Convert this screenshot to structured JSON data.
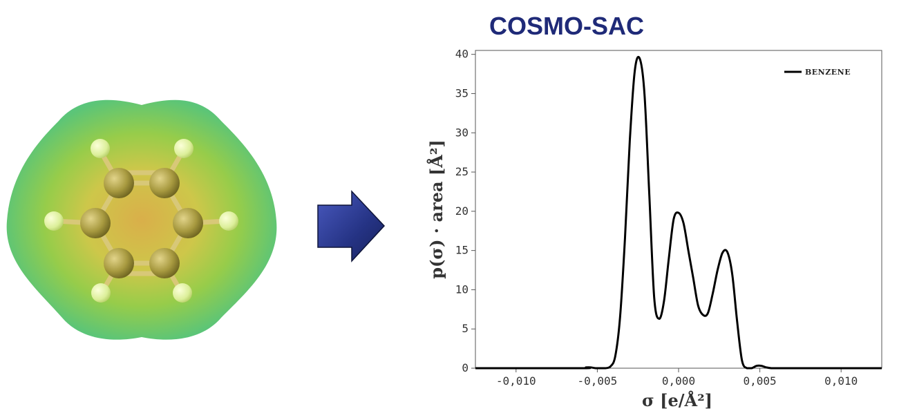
{
  "header": {
    "title": "COSMO-SAC"
  },
  "molecule": {
    "name_icon": "benzene-surface-icon"
  },
  "arrow": {
    "icon": "arrow-right-icon",
    "color": "#2c3a8f"
  },
  "colors": {
    "title": "#1f2a78",
    "line": "#000000",
    "axis": "#555555"
  },
  "chart_data": {
    "type": "line",
    "title": "",
    "xlabel": "σ [e/Å²]",
    "ylabel": "p(σ) · area [Å²]",
    "xlim": [
      -0.0125,
      0.0125
    ],
    "ylim": [
      0,
      40.5
    ],
    "xticks": [
      -0.01,
      -0.005,
      0.0,
      0.005,
      0.01
    ],
    "xtick_labels": [
      "-0,010",
      "-0,005",
      "0,000",
      "0,005",
      "0,010"
    ],
    "yticks": [
      0,
      5,
      10,
      15,
      20,
      25,
      30,
      35,
      40
    ],
    "ytick_labels": [
      "0",
      "5",
      "10",
      "15",
      "20",
      "25",
      "30",
      "35",
      "40"
    ],
    "legend_position": "top-right",
    "series": [
      {
        "name": "BENZENE",
        "x": [
          -0.0125,
          -0.006,
          -0.0057,
          -0.0054,
          -0.0051,
          -0.0048,
          -0.0045,
          -0.0042,
          -0.0039,
          -0.0036,
          -0.0033,
          -0.003,
          -0.0027,
          -0.0024,
          -0.0021,
          -0.0018,
          -0.0015,
          -0.0012,
          -0.0009,
          -0.0006,
          -0.0003,
          0.0,
          0.0003,
          0.0006,
          0.0009,
          0.0012,
          0.0015,
          0.0018,
          0.0021,
          0.0024,
          0.0027,
          0.003,
          0.0033,
          0.0036,
          0.0039,
          0.0042,
          0.0045,
          0.0048,
          0.0051,
          0.0054,
          0.0057,
          0.006,
          0.0063,
          0.0066,
          0.0069,
          0.0072,
          0.0125
        ],
        "y": [
          0,
          0,
          0.1,
          0.1,
          0,
          0,
          0,
          0.2,
          1.5,
          6.5,
          16.5,
          29.0,
          37.8,
          39.5,
          35.0,
          22.0,
          9.0,
          6.3,
          8.5,
          14.0,
          19.0,
          19.8,
          18.5,
          15.0,
          11.5,
          8.0,
          6.8,
          7.0,
          9.5,
          12.5,
          14.7,
          14.8,
          12.0,
          6.0,
          1.0,
          0,
          0,
          0.3,
          0.3,
          0.1,
          0,
          0,
          0,
          0,
          0,
          0,
          0
        ]
      }
    ]
  }
}
